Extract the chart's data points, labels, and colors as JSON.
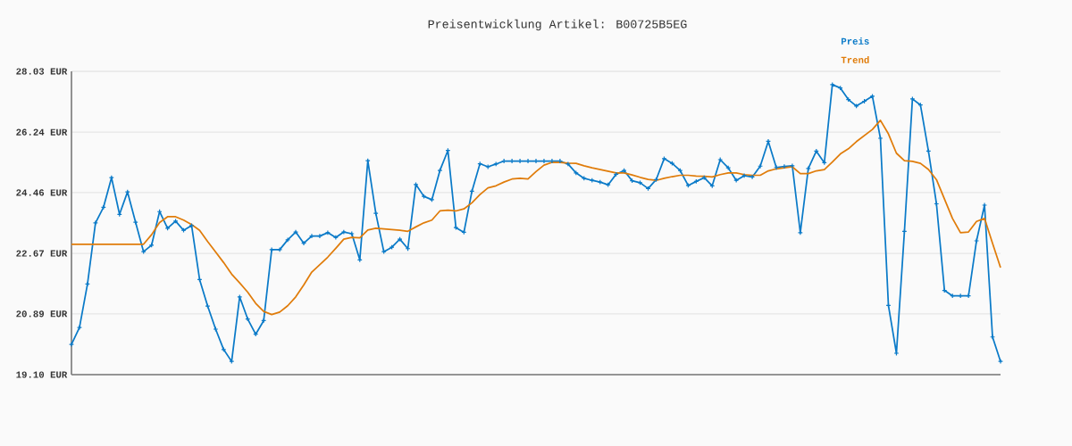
{
  "chart_data": {
    "type": "line",
    "title": "Preisentwicklung Artikel: B00725B5EG",
    "categories": [
      null,
      null,
      null,
      null,
      null,
      null,
      null,
      null,
      null,
      null,
      null,
      null,
      null,
      null,
      null,
      null,
      null,
      null,
      null,
      null,
      null,
      null,
      null,
      null,
      null,
      null,
      null,
      null,
      null,
      null,
      null,
      null,
      null,
      null,
      null,
      null,
      null,
      null,
      null,
      null,
      null,
      null,
      null,
      null,
      null,
      null,
      null,
      null,
      null,
      null,
      null,
      null,
      null,
      null,
      null,
      null,
      null,
      null,
      null,
      null,
      null,
      null,
      null,
      null,
      null,
      null,
      null,
      null,
      null,
      null,
      null,
      null,
      null,
      null,
      null,
      null,
      null,
      null,
      null,
      null,
      null,
      null,
      null,
      null,
      null,
      null,
      null,
      null,
      null,
      null,
      null,
      null,
      null,
      null,
      null,
      null,
      null,
      null,
      null,
      null,
      null,
      null,
      null,
      null,
      null,
      null,
      null,
      null,
      null,
      null,
      null,
      null,
      null,
      null,
      null,
      null,
      null
    ],
    "series": [
      {
        "name": "Preis",
        "color": "#0a7ac8",
        "marker": "cross",
        "values": [
          19.99,
          20.49,
          21.77,
          23.57,
          24.03,
          24.9,
          23.82,
          24.48,
          23.59,
          22.72,
          22.91,
          23.9,
          23.41,
          23.62,
          23.35,
          23.49,
          21.9,
          21.12,
          20.44,
          19.84,
          19.49,
          21.39,
          20.74,
          20.29,
          20.69,
          22.78,
          22.78,
          23.07,
          23.3,
          22.97,
          23.18,
          23.18,
          23.28,
          23.14,
          23.3,
          23.25,
          22.48,
          25.4,
          23.85,
          22.72,
          22.85,
          23.09,
          22.81,
          24.7,
          24.35,
          24.25,
          25.11,
          25.7,
          23.43,
          23.29,
          24.5,
          25.31,
          25.22,
          25.3,
          25.39,
          25.39,
          25.39,
          25.39,
          25.39,
          25.39,
          25.39,
          25.39,
          25.3,
          25.04,
          24.88,
          24.82,
          24.77,
          24.69,
          25.0,
          25.11,
          24.81,
          24.75,
          24.58,
          24.84,
          25.46,
          25.32,
          25.11,
          24.67,
          24.79,
          24.9,
          24.66,
          25.43,
          25.19,
          24.82,
          24.96,
          24.92,
          25.24,
          25.97,
          25.2,
          25.23,
          25.25,
          23.28,
          25.17,
          25.68,
          25.34,
          27.64,
          27.54,
          27.2,
          27.01,
          27.15,
          27.3,
          26.06,
          21.14,
          19.73,
          23.32,
          27.22,
          27.04,
          25.68,
          24.13,
          21.58,
          21.42,
          21.42,
          21.42,
          23.04,
          24.09,
          20.21,
          19.49
        ]
      },
      {
        "name": "Trend",
        "color": "#e07c0a",
        "marker": "none",
        "values": [
          22.94,
          22.94,
          22.94,
          22.94,
          22.94,
          22.94,
          22.94,
          22.94,
          22.94,
          22.94,
          23.22,
          23.58,
          23.75,
          23.75,
          23.65,
          23.52,
          23.35,
          23.02,
          22.71,
          22.4,
          22.06,
          21.8,
          21.53,
          21.2,
          20.96,
          20.87,
          20.94,
          21.13,
          21.39,
          21.74,
          22.12,
          22.34,
          22.56,
          22.82,
          23.09,
          23.14,
          23.13,
          23.36,
          23.41,
          23.39,
          23.37,
          23.35,
          23.32,
          23.45,
          23.57,
          23.65,
          23.92,
          23.94,
          23.92,
          23.98,
          24.16,
          24.4,
          24.6,
          24.66,
          24.77,
          24.86,
          24.88,
          24.86,
          25.08,
          25.27,
          25.35,
          25.35,
          25.33,
          25.32,
          25.25,
          25.19,
          25.14,
          25.09,
          25.04,
          25.04,
          24.98,
          24.91,
          24.85,
          24.82,
          24.88,
          24.93,
          24.97,
          24.97,
          24.95,
          24.94,
          24.92,
          24.99,
          25.04,
          25.04,
          24.99,
          24.97,
          24.97,
          25.1,
          25.16,
          25.19,
          25.22,
          25.02,
          25.02,
          25.1,
          25.14,
          25.36,
          25.6,
          25.75,
          25.96,
          26.14,
          26.32,
          26.59,
          26.19,
          25.62,
          25.4,
          25.38,
          25.32,
          25.14,
          24.84,
          24.27,
          23.7,
          23.28,
          23.3,
          23.61,
          23.7,
          22.97,
          22.25
        ]
      }
    ],
    "ylim": [
      19.1,
      28.03
    ],
    "yticks": [
      {
        "value": 19.1,
        "label": "19.10 EUR"
      },
      {
        "value": 20.89,
        "label": "20.89 EUR"
      },
      {
        "value": 22.67,
        "label": "22.67 EUR"
      },
      {
        "value": 24.46,
        "label": "24.46 EUR"
      },
      {
        "value": 26.24,
        "label": "26.24 EUR"
      },
      {
        "value": 28.03,
        "label": "28.03 EUR"
      }
    ],
    "grid": "y",
    "legend": "top right",
    "tick_labels": "y",
    "line_style": "solid"
  }
}
